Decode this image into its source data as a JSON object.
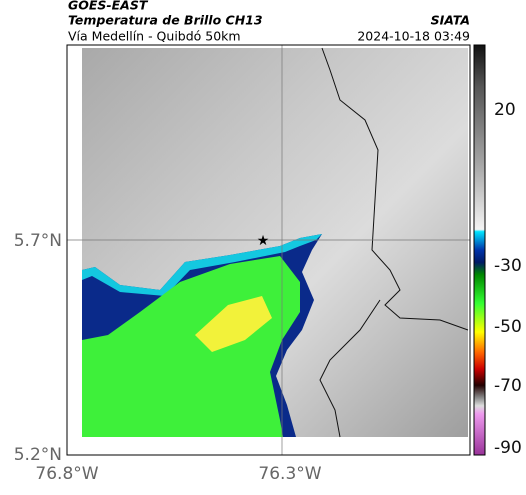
{
  "header": {
    "title": "GOES-EAST",
    "subtitle": "Temperatura de Brillo CH13",
    "source": "SIATA",
    "route": "Vía Medellín - Quibdó 50km",
    "timestamp": "2024-10-18 03:49"
  },
  "map": {
    "lat_labels": [
      "5.7°N",
      "5.2°N"
    ],
    "lon_labels": [
      "76.8°W",
      "76.3°W"
    ]
  },
  "colorbar": {
    "ticks": [
      20,
      -30,
      -50,
      -70,
      -90
    ]
  }
}
